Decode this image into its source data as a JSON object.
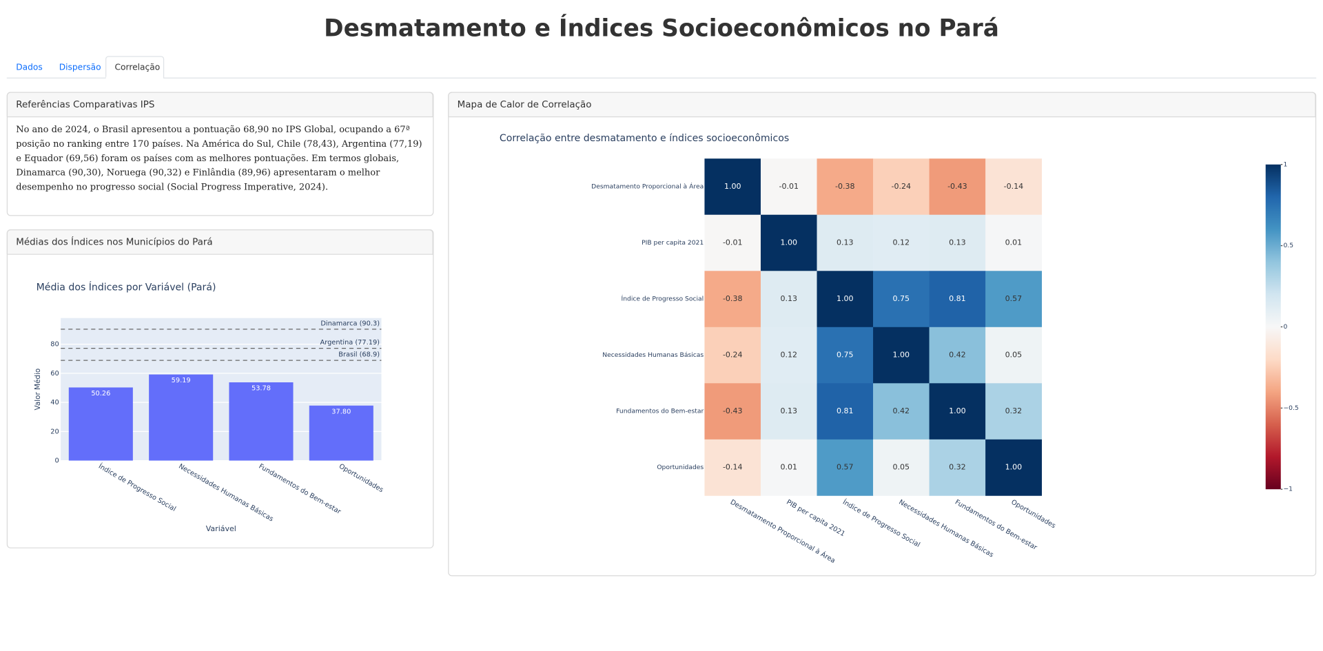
{
  "header": {
    "title": "Desmatamento e Índices Socioeconômicos no Pará"
  },
  "tabs": [
    "Dados",
    "Dispersão",
    "Correlação"
  ],
  "panels": [
    {
      "title": "Referências Comparativas IPS",
      "text": "No ano de 2024, o Brasil apresentou a pontuação 68,90 no IPS Global, ocupando a 67ª posição no ranking entre 170 países. Na América do Sul, Chile (78,43), Argentina (77,19) e Equador (69,56) foram os países com as melhores pontuações. Em termos globais, Dinamarca (90,30), Noruega (90,32) e Finlândia (89,96) apresentaram o melhor desempenho no progresso social (Social Progress Imperative, 2024)."
    },
    {
      "title": "Médias dos Índices nos Municípios do Pará"
    },
    {
      "title": "Mapa de Calor de Correlação"
    }
  ],
  "chart_data": [
    {
      "type": "bar",
      "title": "Média dos Índices por Variável (Pará)",
      "x_label": "Variável",
      "y_label": "Valor Médio",
      "categories": [
        "Índice de Progresso Social",
        "Necessidades Humanas Básicas",
        "Fundamentos do Bem-estar",
        "Oportunidades"
      ],
      "values": [
        50.26,
        59.19,
        53.78,
        37.8
      ],
      "value_labels": [
        "50.26",
        "59.19",
        "53.78",
        "37.80"
      ],
      "color": "#636efa",
      "ylim": [
        0,
        98
      ],
      "yticks": [
        0,
        20,
        40,
        60,
        80
      ],
      "grid": true,
      "reference_lines": [
        {
          "label": "Dinamarca (90.3)",
          "value": 90.3
        },
        {
          "label": "Argentina (77.19)",
          "value": 77.19
        },
        {
          "label": "Brasil (68.9)",
          "value": 68.9
        }
      ]
    },
    {
      "type": "heatmap",
      "title": "Correlação entre desmatamento e índices socioeconômicos",
      "labels": [
        "Desmatamento Proporcional à Área",
        "PIB per capita 2021",
        "Índice de Progresso Social",
        "Necessidades Humanas Básicas",
        "Fundamentos do Bem-estar",
        "Oportunidades"
      ],
      "values": [
        [
          1,
          -0.01,
          -0.38,
          -0.24,
          -0.43,
          -0.14
        ],
        [
          -0.01,
          1,
          0.13,
          0.12,
          0.13,
          0.01
        ],
        [
          -0.38,
          0.13,
          1,
          0.75,
          0.81,
          0.57
        ],
        [
          -0.24,
          0.12,
          0.75,
          1,
          0.42,
          0.05
        ],
        [
          -0.43,
          0.13,
          0.81,
          0.42,
          1,
          0.32
        ],
        [
          -0.14,
          0.01,
          0.57,
          0.05,
          0.32,
          1
        ]
      ],
      "value_labels": [
        [
          "1.00",
          "-0.01",
          "-0.38",
          "-0.24",
          "-0.43",
          "-0.14"
        ],
        [
          "-0.01",
          "1.00",
          "0.13",
          "0.12",
          "0.13",
          "0.01"
        ],
        [
          "-0.38",
          "0.13",
          "1.00",
          "0.75",
          "0.81",
          "0.57"
        ],
        [
          "-0.24",
          "0.12",
          "0.75",
          "1.00",
          "0.42",
          "0.05"
        ],
        [
          "-0.43",
          "0.13",
          "0.81",
          "0.42",
          "1.00",
          "0.32"
        ],
        [
          "-0.14",
          "0.01",
          "0.57",
          "0.05",
          "0.32",
          "1.00"
        ]
      ],
      "colorscale": [
        "#67001f",
        "#b2182b",
        "#d6604d",
        "#f4a582",
        "#fddbc7",
        "#f7f7f7",
        "#d1e5f0",
        "#92c5de",
        "#4393c3",
        "#2166ac",
        "#053061"
      ],
      "zlim": [
        -1,
        1
      ],
      "zticks": [
        {
          "value": -1,
          "label": "−1"
        },
        {
          "value": -0.5,
          "label": "−0.5"
        },
        0,
        0.5,
        1
      ]
    }
  ]
}
